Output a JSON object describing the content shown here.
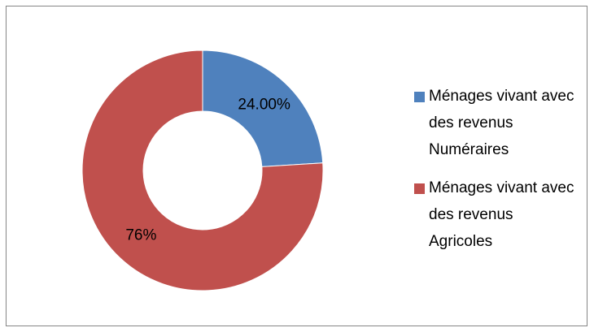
{
  "chart_data": {
    "type": "donut",
    "categories": [
      "Ménages vivant avec des revenus Numéraires",
      "Ménages vivant avec des revenus Agricoles"
    ],
    "values": [
      24,
      76
    ],
    "value_labels": [
      "24.00%",
      "76%"
    ],
    "colors": [
      "#4f81bd",
      "#c0504d"
    ],
    "legend": "right"
  }
}
